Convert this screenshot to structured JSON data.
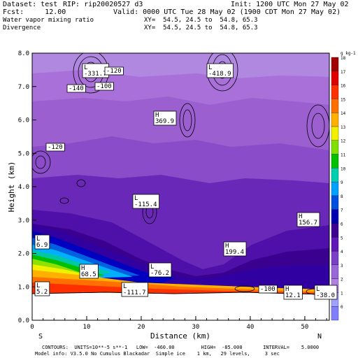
{
  "header": {
    "dataset_label": "Dataset: test",
    "rip_label": "RIP: rip20020527 d3",
    "init_label": "Init: 1200 UTC Mon 27 May 02",
    "fcst_label": "Fcst:     12.00",
    "valid_label": "Valid: 0000 UTC Tue 28 May 02 (1900 CDT Mon 27 May 02)",
    "field1": "Water vapor mixing ratio",
    "field2": "Divergence",
    "xy1": "XY=  54.5, 24.5 to  54.8, 65.3",
    "xy2": "XY=  54.5, 24.5 to  54.8, 65.3"
  },
  "chart_data": {
    "type": "heatmap",
    "xlabel": "Distance (km)",
    "ylabel": "Height (km)",
    "xlim": [
      0,
      54.5
    ],
    "ylim": [
      0,
      8.0
    ],
    "x_ticks": [
      "0",
      "10",
      "20",
      "30",
      "40",
      "50"
    ],
    "y_ticks": [
      "0.0",
      "1.0",
      "2.0",
      "3.0",
      "4.0",
      "5.0",
      "6.0",
      "7.0",
      "8.0"
    ],
    "left_end_label": "S",
    "right_end_label": "N",
    "colorbar": {
      "unit_label": "g kg-1",
      "levels": [
        "0",
        "1",
        "2",
        "3",
        "4",
        "5",
        "6",
        "7",
        "8",
        "9",
        "10",
        "11",
        "12",
        "13",
        "14",
        "15",
        "16",
        "17",
        "18"
      ],
      "colors": [
        "#8080ff",
        "#a0a0ff",
        "#b080e0",
        "#9868d8",
        "#7a40c8",
        "#5e18b8",
        "#3c0090",
        "#0000b0",
        "#0050e0",
        "#00a0ff",
        "#00d0b0",
        "#00c000",
        "#80e000",
        "#f0f000",
        "#ffb000",
        "#ff7000",
        "#ff3000",
        "#e00000",
        "#a00000"
      ]
    },
    "highs_lows": [
      {
        "type": "L",
        "value": "-331.7"
      },
      {
        "type": "",
        "value": "-120"
      },
      {
        "type": "",
        "value": "-140"
      },
      {
        "type": "",
        "value": "-100"
      },
      {
        "type": "L",
        "value": "-418.9"
      },
      {
        "type": "H",
        "value": "369.9"
      },
      {
        "type": "",
        "value": "-120"
      },
      {
        "type": "L",
        "value": "-115.4"
      },
      {
        "type": "H",
        "value": "156.7"
      },
      {
        "type": "L",
        "value": "6.9"
      },
      {
        "type": "H",
        "value": "199.4"
      },
      {
        "type": "H",
        "value": "68.5"
      },
      {
        "type": "L",
        "value": "-76.2"
      },
      {
        "type": "L",
        "value": "5.2"
      },
      {
        "type": "L",
        "value": "-111.7"
      },
      {
        "type": "",
        "value": "-100"
      },
      {
        "type": "H",
        "value": "12.1"
      },
      {
        "type": "L",
        "value": "-38.0"
      }
    ]
  },
  "footer": {
    "contours": "CONTOURS:  UNITS=10**-5 s**-1   LOW=  -460.00         HIGH=  -85.000       INTERVAL=    5.0000",
    "model_info": "Model info: V3.5.0 No Cumulus Blackadar  Simple ice    1 km,   29 levels,     3 sec"
  }
}
